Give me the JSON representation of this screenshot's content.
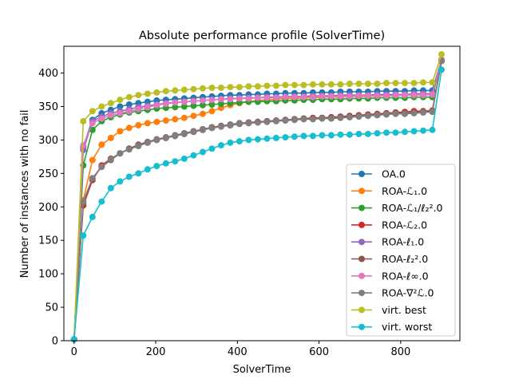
{
  "chart_data": {
    "type": "line",
    "title": "Absolute performance profile (SolverTime)",
    "xlabel": "SolverTime",
    "ylabel": "Number of instances with no fail",
    "xlim": [
      -25,
      945
    ],
    "ylim": [
      0,
      440
    ],
    "xticks": [
      0,
      200,
      400,
      600,
      800
    ],
    "yticks": [
      0,
      50,
      100,
      150,
      200,
      250,
      300,
      350,
      400
    ],
    "legend_position": "lower right",
    "grid": false,
    "x": [
      0,
      22.5,
      45,
      67.5,
      90,
      112.5,
      135,
      157.5,
      180,
      202.5,
      225,
      247.5,
      270,
      292.5,
      315,
      337.5,
      360,
      382.5,
      405,
      427.5,
      450,
      472.5,
      495,
      517.5,
      540,
      562.5,
      585,
      607.5,
      630,
      652.5,
      675,
      697.5,
      720,
      742.5,
      765,
      787.5,
      810,
      832.5,
      855,
      877.5,
      900
    ],
    "series": [
      {
        "name": "OA.0",
        "color": "#1f77b4",
        "values": [
          2,
          290,
          330,
          340,
          345,
          350,
          353,
          355,
          357,
          359,
          360,
          361,
          362,
          363,
          364,
          365,
          366,
          367,
          367,
          368,
          368,
          369,
          369,
          370,
          370,
          370,
          371,
          371,
          371,
          372,
          372,
          372,
          372,
          373,
          373,
          373,
          373,
          374,
          374,
          374,
          420
        ]
      },
      {
        "name": "ROA-ℒ₁.0",
        "color": "#ff7f0e",
        "values": [
          2,
          210,
          270,
          293,
          303,
          313,
          318,
          322,
          325,
          327,
          329,
          331,
          333,
          336,
          339,
          343,
          348,
          352,
          355,
          357,
          359,
          360,
          361,
          362,
          362,
          363,
          363,
          364,
          364,
          364,
          365,
          365,
          365,
          366,
          366,
          366,
          367,
          367,
          367,
          368,
          420
        ]
      },
      {
        "name": "ROA-ℒ₁/ℓ₂².0",
        "color": "#2ca02c",
        "values": [
          2,
          262,
          315,
          328,
          334,
          338,
          341,
          343,
          345,
          347,
          348,
          349,
          350,
          351,
          352,
          353,
          354,
          355,
          356,
          357,
          357,
          358,
          358,
          359,
          359,
          360,
          360,
          361,
          361,
          361,
          362,
          362,
          362,
          363,
          363,
          363,
          363,
          364,
          364,
          364,
          420
        ]
      },
      {
        "name": "ROA-ℒ₂.0",
        "color": "#d62728",
        "values": [
          2,
          202,
          240,
          262,
          272,
          280,
          287,
          292,
          296,
          300,
          303,
          306,
          309,
          312,
          315,
          318,
          320,
          322,
          324,
          326,
          327,
          328,
          329,
          330,
          331,
          332,
          333,
          333,
          334,
          335,
          336,
          337,
          338,
          339,
          340,
          341,
          342,
          343,
          343,
          344,
          418
        ]
      },
      {
        "name": "ROA-ℓ₁.0",
        "color": "#9467bd",
        "values": [
          2,
          285,
          328,
          335,
          340,
          343,
          346,
          349,
          351,
          353,
          355,
          356,
          357,
          358,
          359,
          360,
          361,
          362,
          362,
          363,
          363,
          364,
          364,
          365,
          365,
          365,
          366,
          366,
          366,
          367,
          367,
          367,
          367,
          368,
          368,
          368,
          368,
          369,
          369,
          369,
          420
        ]
      },
      {
        "name": "ROA-ℓ₂².0",
        "color": "#8c564b",
        "values": [
          2,
          205,
          242,
          260,
          270,
          280,
          287,
          293,
          297,
          301,
          304,
          307,
          310,
          313,
          316,
          319,
          321,
          323,
          325,
          326,
          327,
          328,
          329,
          330,
          331,
          332,
          332,
          333,
          333,
          334,
          335,
          336,
          337,
          338,
          339,
          340,
          340,
          341,
          342,
          343,
          418
        ]
      },
      {
        "name": "ROA-ℓ∞.0",
        "color": "#e377c2",
        "values": [
          2,
          292,
          325,
          332,
          337,
          340,
          343,
          346,
          349,
          352,
          354,
          356,
          357,
          358,
          359,
          360,
          361,
          361,
          362,
          362,
          363,
          363,
          363,
          364,
          364,
          364,
          364,
          365,
          365,
          365,
          365,
          366,
          366,
          366,
          366,
          367,
          367,
          367,
          367,
          368,
          420
        ]
      },
      {
        "name": "ROA-∇²ℒ.0",
        "color": "#7f7f7f",
        "values": [
          2,
          208,
          243,
          260,
          271,
          280,
          286,
          291,
          296,
          300,
          303,
          306,
          309,
          312,
          315,
          318,
          320,
          322,
          324,
          325,
          326,
          327,
          328,
          329,
          330,
          331,
          331,
          332,
          332,
          333,
          334,
          335,
          336,
          337,
          338,
          339,
          339,
          340,
          341,
          342,
          418
        ]
      },
      {
        "name": "virt. best",
        "color": "#bcbd22",
        "values": [
          2,
          328,
          343,
          350,
          355,
          360,
          364,
          367,
          369,
          371,
          373,
          374,
          375,
          376,
          377,
          378,
          378,
          379,
          379,
          380,
          380,
          381,
          381,
          382,
          382,
          382,
          383,
          383,
          383,
          383,
          384,
          384,
          384,
          384,
          385,
          385,
          385,
          385,
          386,
          386,
          428
        ]
      },
      {
        "name": "virt. worst",
        "color": "#17becf",
        "values": [
          2,
          157,
          185,
          208,
          228,
          238,
          245,
          250,
          256,
          261,
          265,
          268,
          272,
          277,
          282,
          287,
          292,
          296,
          298,
          300,
          301,
          302,
          303,
          304,
          305,
          306,
          306,
          307,
          307,
          308,
          308,
          309,
          309,
          310,
          311,
          311,
          312,
          313,
          314,
          315,
          405
        ]
      }
    ]
  }
}
